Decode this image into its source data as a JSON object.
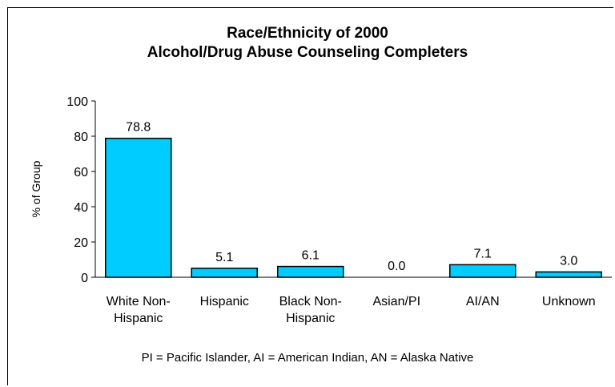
{
  "chart_data": {
    "type": "bar",
    "title": "Race/Ethnicity of 2000",
    "subtitle": "Alcohol/Drug Abuse Counseling Completers",
    "ylabel": "% of Group",
    "xlabel": "",
    "ylim": [
      0,
      100
    ],
    "yticks": [
      0,
      20,
      40,
      60,
      80,
      100
    ],
    "categories": [
      [
        "White Non-",
        "Hispanic"
      ],
      [
        "Hispanic"
      ],
      [
        "Black Non-",
        "Hispanic"
      ],
      [
        "Asian/PI"
      ],
      [
        "AI/AN"
      ],
      [
        "Unknown"
      ]
    ],
    "values": [
      78.8,
      5.1,
      6.1,
      0.0,
      7.1,
      3.0
    ],
    "value_labels": [
      "78.8",
      "5.1",
      "6.1",
      "0.0",
      "7.1",
      "3.0"
    ],
    "bar_color": "#00ccff",
    "grid": false,
    "legend": "none"
  },
  "footnote": "PI = Pacific Islander, AI = American Indian, AN = Alaska Native"
}
